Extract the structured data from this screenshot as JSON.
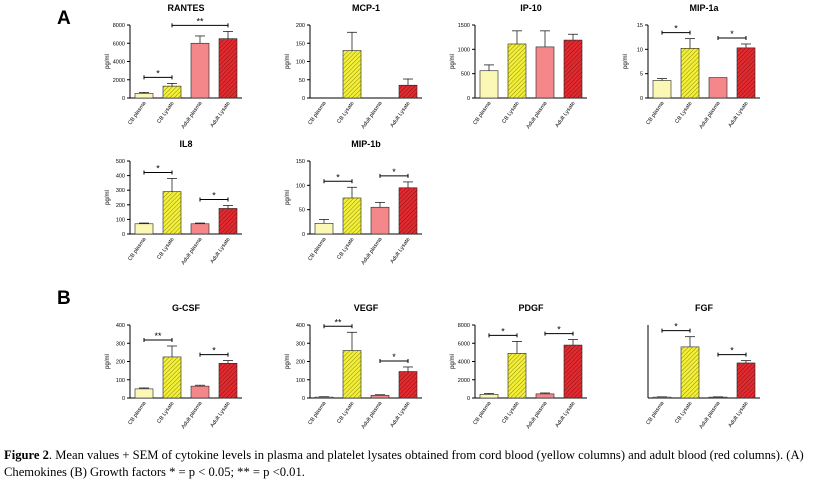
{
  "figure": {
    "panel_labels": [
      "A",
      "B"
    ],
    "ylabel": "pg/ml",
    "categories": [
      "CB plasma",
      "CB Lysate",
      "Adult plasma",
      "Adult Lysate"
    ],
    "colors": {
      "cb_plasma": "#fbf7b4",
      "cb_lysate": "#f4f03a",
      "adult_plasma": "#f4878a",
      "adult_lysate": "#e12b30",
      "hatch": "#5a5a1a",
      "axis": "#000000"
    }
  },
  "chart_data": [
    {
      "type": "bar",
      "title": "RANTES",
      "panel": "A",
      "categories": [
        "CB plasma",
        "CB Lysate",
        "Adult plasma",
        "Adult Lysate"
      ],
      "values": [
        500,
        1300,
        6000,
        6500
      ],
      "errors": [
        100,
        300,
        800,
        800
      ],
      "ylim": [
        0,
        8000
      ],
      "yticks": [
        "0",
        "2000",
        "4000",
        "6000",
        "8000"
      ],
      "ylabel": "pg/ml",
      "significance": [
        {
          "from": 0,
          "to": 1,
          "label": "*"
        },
        {
          "from": 1,
          "to": 3,
          "label": "**"
        }
      ]
    },
    {
      "type": "bar",
      "title": "MCP-1",
      "panel": "A",
      "categories": [
        "CB plasma",
        "CB Lysate",
        "Adult plasma",
        "Adult Lysate"
      ],
      "values": [
        0,
        130,
        0,
        35
      ],
      "errors": [
        0,
        50,
        0,
        17
      ],
      "ylim": [
        0,
        200
      ],
      "yticks": [
        "0",
        "50",
        "100",
        "150",
        "200"
      ],
      "ylabel": "pg/ml",
      "significance": []
    },
    {
      "type": "bar",
      "title": "IP-10",
      "panel": "A",
      "categories": [
        "CB plasma",
        "CB Lysate",
        "Adult plasma",
        "Adult Lysate"
      ],
      "values": [
        560,
        1110,
        1050,
        1190
      ],
      "errors": [
        120,
        270,
        330,
        120
      ],
      "ylim": [
        0,
        1500
      ],
      "yticks": [
        "0",
        "500",
        "1000",
        "1500"
      ],
      "ylabel": "pg/ml",
      "significance": []
    },
    {
      "type": "bar",
      "title": "MIP-1a",
      "panel": "A",
      "categories": [
        "CB plasma",
        "CB Lysate",
        "Adult plasma",
        "Adult Lysate"
      ],
      "values": [
        3.6,
        10.2,
        4.2,
        10.3
      ],
      "errors": [
        0.4,
        2.0,
        0,
        0.8
      ],
      "ylim": [
        0,
        15
      ],
      "yticks": [
        "0",
        "5",
        "10",
        "15"
      ],
      "ylabel": "pg/ml",
      "significance": [
        {
          "from": 0,
          "to": 1,
          "label": "*"
        },
        {
          "from": 2,
          "to": 3,
          "label": "*"
        }
      ]
    },
    {
      "type": "bar",
      "title": "IL8",
      "panel": "A",
      "categories": [
        "CB plasma",
        "CB Lysate",
        "Adult plasma",
        "Adult Lysate"
      ],
      "values": [
        70,
        290,
        70,
        175
      ],
      "errors": [
        5,
        90,
        5,
        20
      ],
      "ylim": [
        0,
        500
      ],
      "yticks": [
        "0",
        "100",
        "200",
        "300",
        "400",
        "500"
      ],
      "ylabel": "pg/ml",
      "significance": [
        {
          "from": 0,
          "to": 1,
          "label": "*"
        },
        {
          "from": 2,
          "to": 3,
          "label": "*"
        }
      ]
    },
    {
      "type": "bar",
      "title": "MIP-1b",
      "panel": "A",
      "categories": [
        "CB plasma",
        "CB Lysate",
        "Adult plasma",
        "Adult Lysate"
      ],
      "values": [
        22,
        74,
        55,
        95
      ],
      "errors": [
        8,
        22,
        10,
        12
      ],
      "ylim": [
        0,
        150
      ],
      "yticks": [
        "0",
        "50",
        "100",
        "150"
      ],
      "ylabel": "pg/ml",
      "significance": [
        {
          "from": 0,
          "to": 1,
          "label": "*"
        },
        {
          "from": 2,
          "to": 3,
          "label": "*"
        }
      ]
    },
    {
      "type": "bar",
      "title": "G-CSF",
      "panel": "B",
      "categories": [
        "CB plasma",
        "CB Lysate",
        "Adult plasma",
        "Adult Lysate"
      ],
      "values": [
        50,
        225,
        65,
        190
      ],
      "errors": [
        5,
        60,
        5,
        15
      ],
      "ylim": [
        0,
        400
      ],
      "yticks": [
        "0",
        "100",
        "200",
        "300",
        "400"
      ],
      "ylabel": "pg/ml",
      "significance": [
        {
          "from": 0,
          "to": 1,
          "label": "**"
        },
        {
          "from": 2,
          "to": 3,
          "label": "*"
        }
      ]
    },
    {
      "type": "bar",
      "title": "VEGF",
      "panel": "B",
      "categories": [
        "CB plasma",
        "CB Lysate",
        "Adult plasma",
        "Adult Lysate"
      ],
      "values": [
        5,
        260,
        15,
        145
      ],
      "errors": [
        2,
        100,
        3,
        25
      ],
      "ylim": [
        0,
        400
      ],
      "yticks": [
        "0",
        "100",
        "200",
        "300",
        "400"
      ],
      "ylabel": "pg/ml",
      "significance": [
        {
          "from": 0,
          "to": 1,
          "label": "**"
        },
        {
          "from": 2,
          "to": 3,
          "label": "*"
        }
      ]
    },
    {
      "type": "bar",
      "title": "PDGF",
      "panel": "B",
      "categories": [
        "CB plasma",
        "CB Lysate",
        "Adult plasma",
        "Adult Lysate"
      ],
      "values": [
        400,
        4900,
        450,
        5800
      ],
      "errors": [
        100,
        1300,
        100,
        600
      ],
      "ylim": [
        0,
        8000
      ],
      "yticks": [
        "0",
        "2000",
        "4000",
        "6000",
        "8000"
      ],
      "ylabel": "pg/ml",
      "significance": [
        {
          "from": 0,
          "to": 1,
          "label": "*"
        },
        {
          "from": 2,
          "to": 3,
          "label": "*"
        }
      ]
    },
    {
      "type": "bar",
      "title": "FGF",
      "panel": "B",
      "categories": [
        "CB plasma",
        "CB Lysate",
        "Adult plasma",
        "Adult Lysate"
      ],
      "values": [
        3,
        175,
        3,
        120
      ],
      "errors": [
        1,
        35,
        1,
        8
      ],
      "ylim": [
        0,
        250
      ],
      "yticks": [],
      "ylabel": "",
      "significance": [
        {
          "from": 0,
          "to": 1,
          "label": "*"
        },
        {
          "from": 2,
          "to": 3,
          "label": "*"
        }
      ]
    }
  ],
  "caption": {
    "label": "Figure 2",
    "text": ". Mean values + SEM of cytokine levels in plasma and platelet lysates obtained from cord blood (yellow columns) and adult blood (red columns). (A) Chemokines (B) Growth factors * = p < 0.05; ** = p <0.01."
  }
}
